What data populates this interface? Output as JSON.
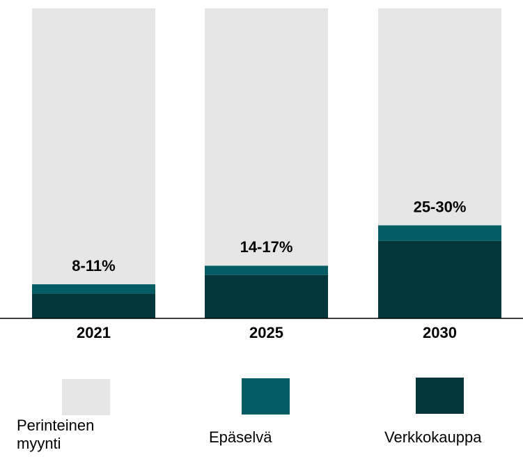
{
  "chart_data": {
    "type": "stacked_bar",
    "categories": [
      "2021",
      "2025",
      "2030"
    ],
    "series": [
      {
        "name": "Verkkokauppa",
        "color": "#03363b",
        "values": [
          8,
          14,
          25
        ]
      },
      {
        "name": "Epäselvä",
        "color": "#035c63",
        "values": [
          3,
          3,
          5
        ]
      },
      {
        "name": "Perinteinen myynti",
        "color": "#e6e6e6",
        "values": [
          89,
          83,
          70
        ]
      }
    ],
    "range_labels": [
      "8-11%",
      "14-17%",
      "25-30%"
    ],
    "ylim": [
      0,
      100
    ]
  }
}
